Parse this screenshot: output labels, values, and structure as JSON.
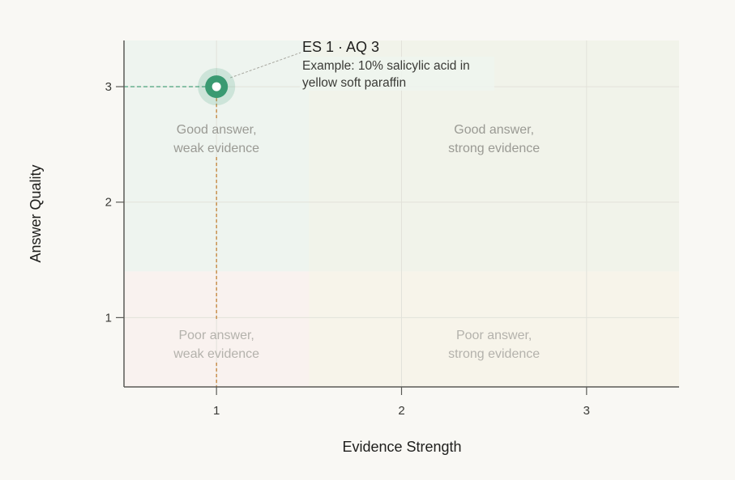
{
  "chart_data": {
    "type": "scatter",
    "xlabel": "Evidence Strength",
    "ylabel": "Answer Quality",
    "xlim": [
      0.5,
      3.5
    ],
    "ylim": [
      0.4,
      3.4
    ],
    "x_ticks": [
      1,
      2,
      3
    ],
    "y_ticks": [
      1,
      2,
      3
    ],
    "grid": true,
    "quadrant_split": {
      "x": 1.5,
      "y": 1.4
    },
    "quadrants": [
      {
        "id": "good-weak",
        "label": [
          "Good answer,",
          "weak evidence"
        ],
        "color": "#eef4ef",
        "text_color": "#9a9a94"
      },
      {
        "id": "good-strong",
        "label": [
          "Good answer,",
          "strong evidence"
        ],
        "color": "#f1f3ea",
        "text_color": "#9a9a94"
      },
      {
        "id": "poor-weak",
        "label": [
          "Poor answer,",
          "weak evidence"
        ],
        "color": "#f9f2ef",
        "text_color": "#b4b2ac"
      },
      {
        "id": "poor-strong",
        "label": [
          "Poor answer,",
          "strong evidence"
        ],
        "color": "#f7f4ea",
        "text_color": "#b4b2ac"
      }
    ],
    "points": [
      {
        "x": 1,
        "y": 3,
        "title": "ES 1 · AQ 3",
        "note": [
          "Example: 10% salicylic acid in",
          "yellow soft paraffin"
        ],
        "color": "#3a9a72"
      }
    ],
    "guide_colors": {
      "horizontal": "#3a9a72",
      "vertical": "#c07a2a"
    }
  }
}
